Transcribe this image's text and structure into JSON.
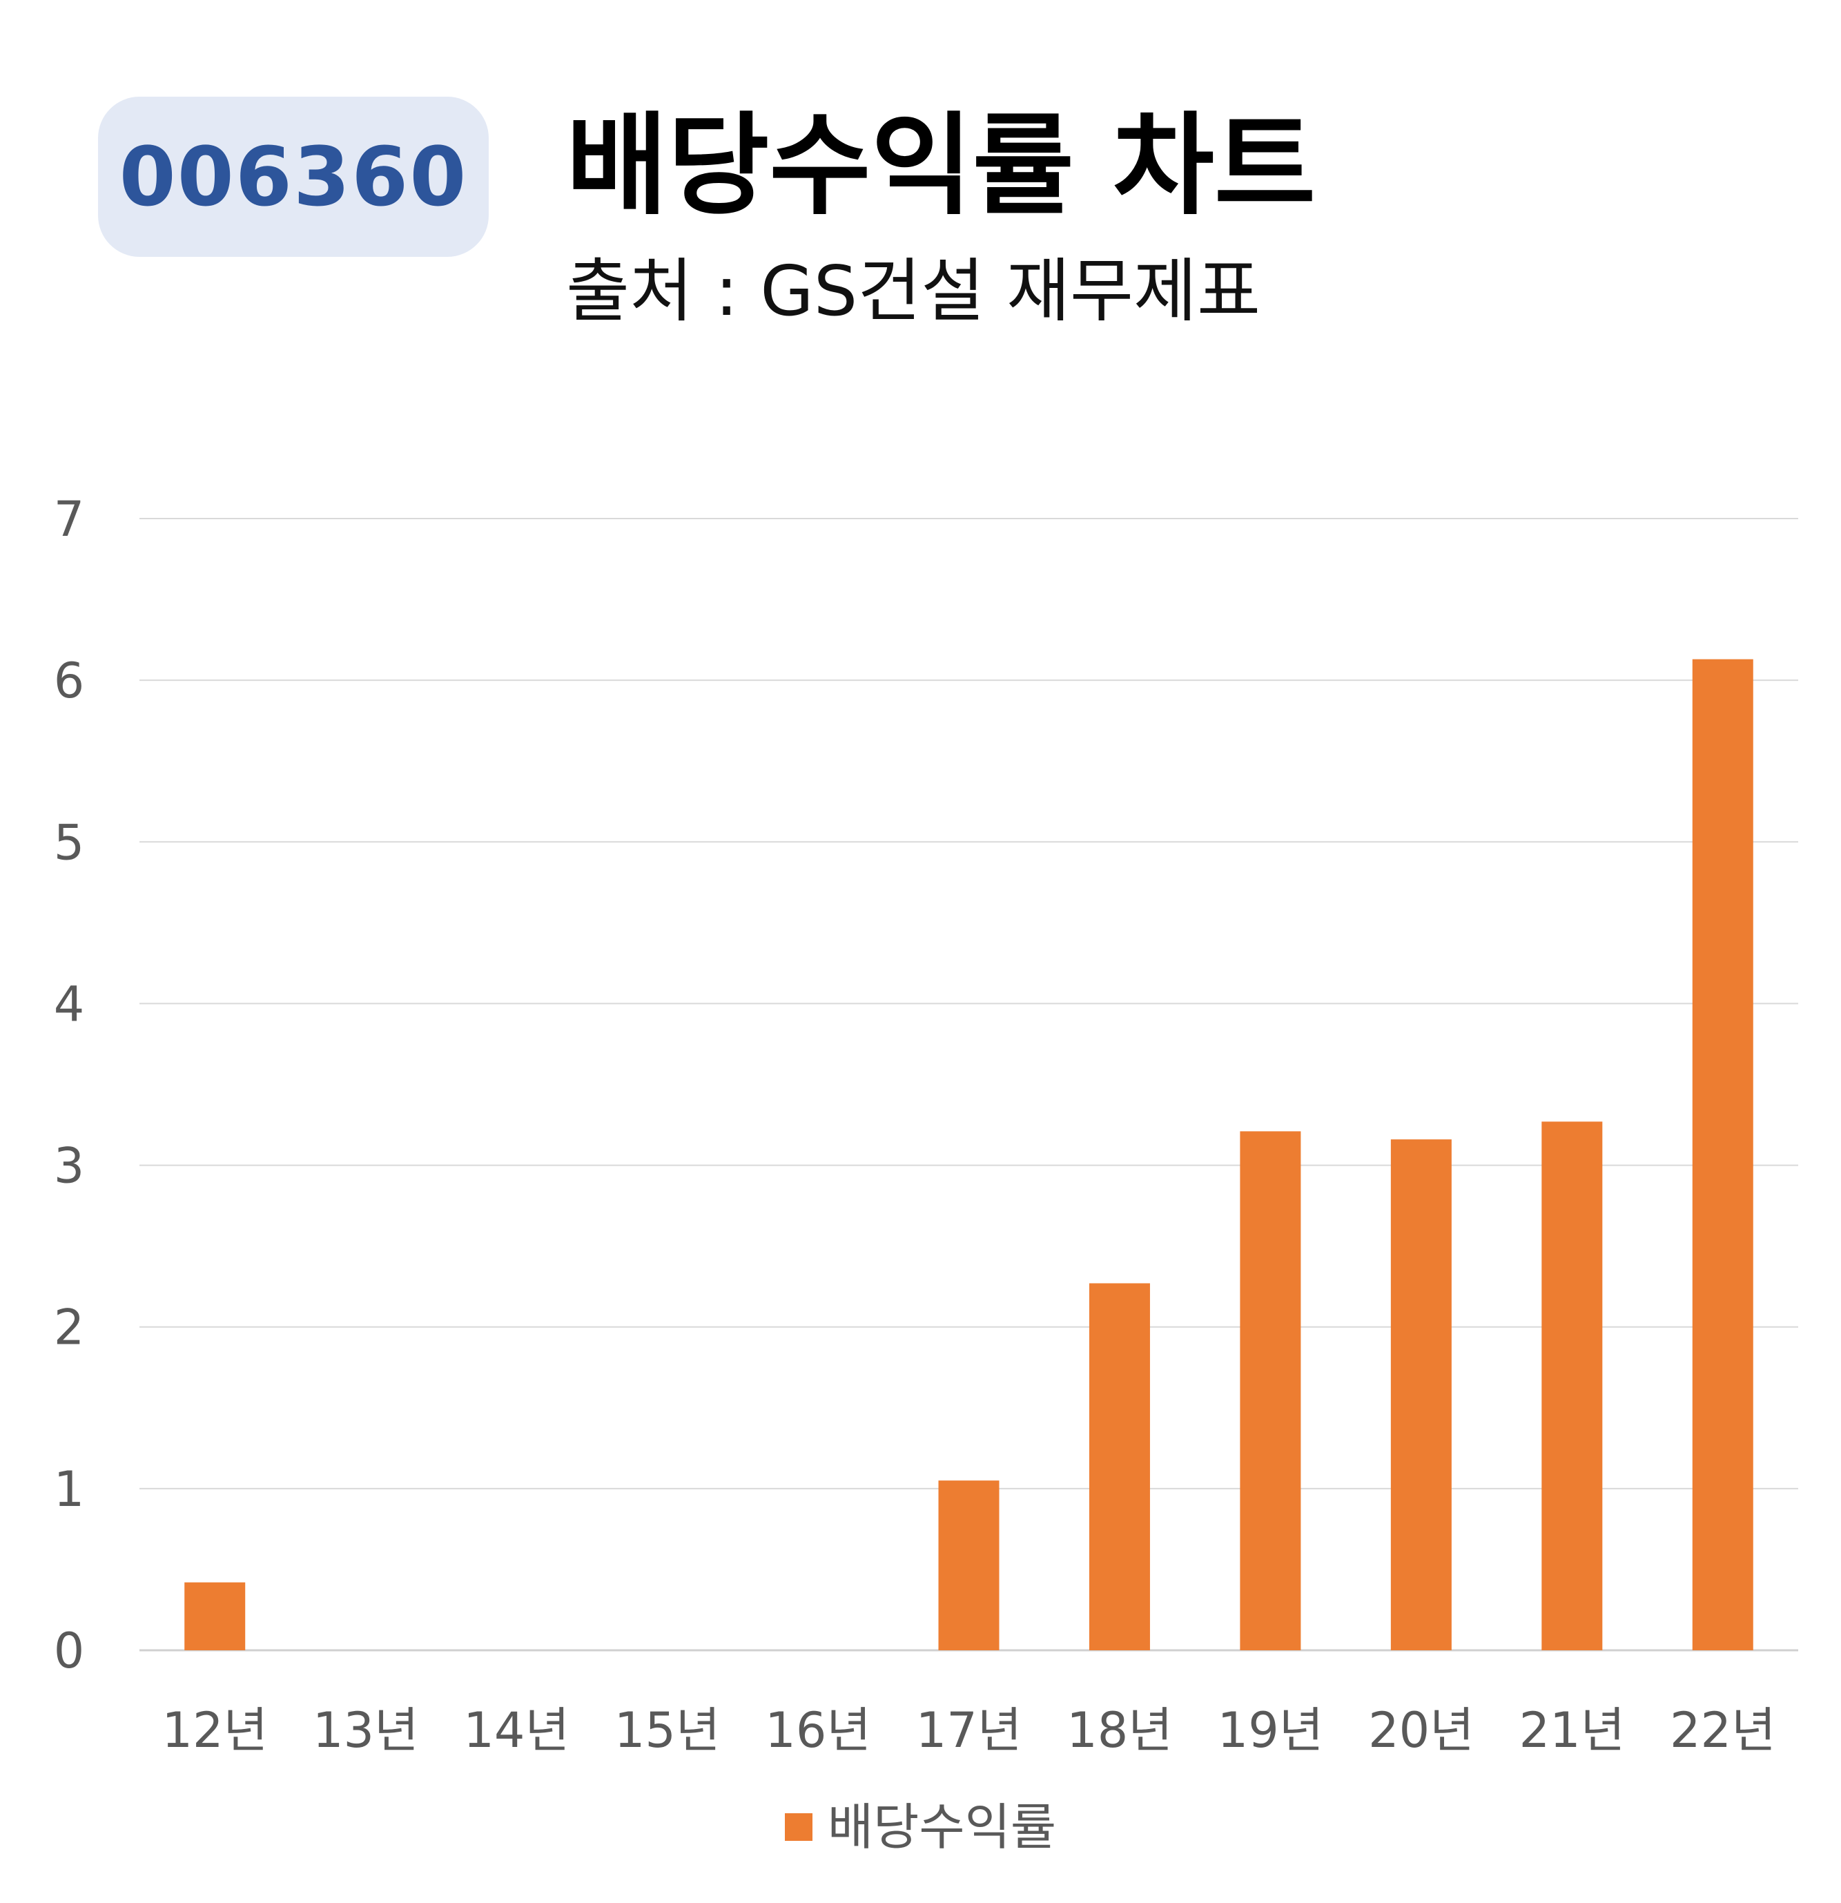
{
  "header": {
    "ticker": "006360",
    "title": "배당수익률 차트",
    "subtitle": "출처 : GS건설 재무제표"
  },
  "chart_data": {
    "type": "bar",
    "categories": [
      "12년",
      "13년",
      "14년",
      "15년",
      "16년",
      "17년",
      "18년",
      "19년",
      "20년",
      "21년",
      "22년"
    ],
    "series": [
      {
        "name": "배당수익률",
        "color": "#ed7d31",
        "values": [
          0.42,
          0,
          0,
          0,
          0,
          1.05,
          2.27,
          3.21,
          3.16,
          3.27,
          6.13
        ]
      }
    ],
    "ylim": [
      0,
      7
    ],
    "yticks": [
      "0",
      "1",
      "2",
      "3",
      "4",
      "5",
      "6",
      "7"
    ],
    "grid": true,
    "legend_position": "bottom"
  }
}
